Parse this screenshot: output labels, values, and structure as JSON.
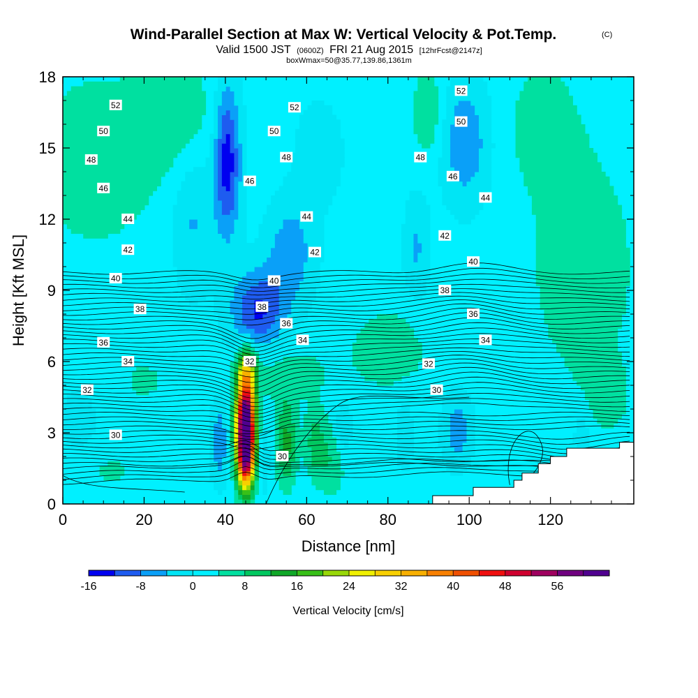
{
  "title": {
    "main": "Wind-Parallel Section at Max W: Vertical Velocity & Pot.Temp.",
    "main_unit": "(C)",
    "sub_a": "Valid 1500 JST",
    "sub_b": "(0600Z)",
    "sub_c": "FRI 21 Aug 2015",
    "sub_d": "[12hrFcst@2147z]",
    "sub2": "boxWmax=50@35.77,139.86,1361m"
  },
  "chart_data": {
    "type": "heatmap",
    "xlabel": "Distance [nm]",
    "ylabel": "Height [Kft MSL]",
    "xlim": [
      0,
      140
    ],
    "ylim": [
      0,
      18
    ],
    "x_ticks": [
      "0",
      "20",
      "40",
      "60",
      "80",
      "100",
      "120"
    ],
    "y_ticks": [
      "0",
      "3",
      "6",
      "9",
      "12",
      "15",
      "18"
    ],
    "colorbar": {
      "label": "Vertical Velocity [cm/s]",
      "ticks": [
        "-16",
        "-8",
        "0",
        "8",
        "16",
        "24",
        "32",
        "40",
        "48",
        "56"
      ],
      "levels": [
        -16,
        -12,
        -8,
        -4,
        0,
        4,
        8,
        12,
        16,
        20,
        24,
        28,
        32,
        36,
        40,
        44,
        48,
        52,
        56,
        60
      ],
      "colors": [
        "#0000f0",
        "#1e5cf0",
        "#0aa0f8",
        "#00e5f5",
        "#00f0ff",
        "#00e0a0",
        "#00c860",
        "#10a828",
        "#38c018",
        "#98d808",
        "#f0f000",
        "#f8d000",
        "#f8b000",
        "#f88000",
        "#f05000",
        "#f01010",
        "#d00030",
        "#a00060",
        "#700080",
        "#500090"
      ]
    },
    "velocity_features": [
      {
        "x": 45,
        "y": 3.5,
        "w": 58,
        "note": "max updraft core"
      },
      {
        "x": 55,
        "y": 2.5,
        "w": 12
      },
      {
        "x": 62,
        "y": 2.5,
        "w": 8
      },
      {
        "x": 47,
        "y": 8,
        "w": -14
      },
      {
        "x": 40,
        "y": 14.5,
        "w": -14
      },
      {
        "x": 97,
        "y": 3,
        "w": -9
      },
      {
        "x": 87,
        "y": 11,
        "w": -8
      },
      {
        "x": 38,
        "y": 2.5,
        "w": -8
      }
    ],
    "potential_temperature_labels": [
      "52",
      "50",
      "48",
      "46",
      "44",
      "42",
      "40",
      "38",
      "36",
      "34",
      "32",
      "30"
    ],
    "terrain_note": "terrain mask rising to about 2.6 Kft at the right edge"
  }
}
